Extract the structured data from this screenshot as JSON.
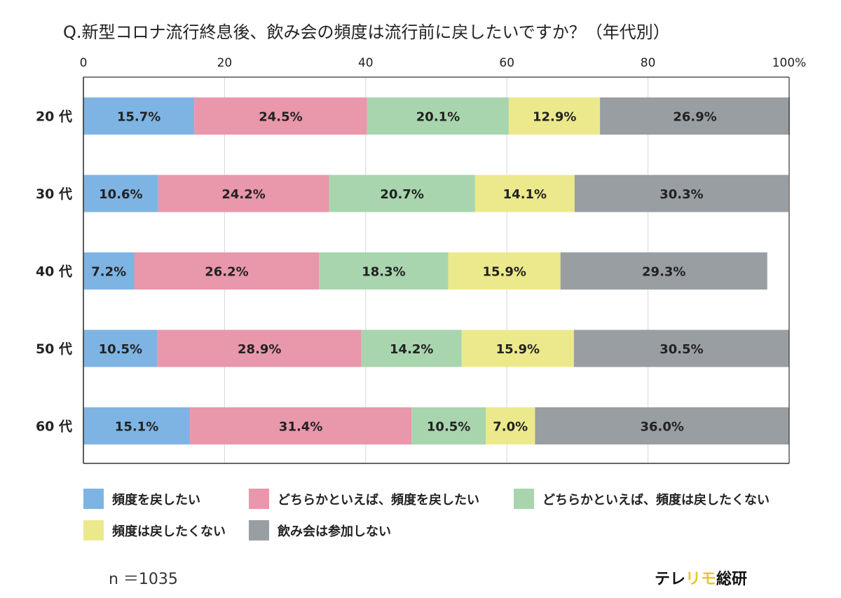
{
  "title": "Q.新型コロナ流行終息後、飲み会の頻度は流行前に戻したいですか？（年代別）",
  "chart_data": {
    "type": "bar",
    "orientation": "horizontal",
    "stacked": true,
    "xlim": [
      0,
      100
    ],
    "x_ticks": [
      "0",
      "20",
      "40",
      "60",
      "80",
      "100%"
    ],
    "x_tick_values": [
      0,
      20,
      40,
      60,
      80,
      100
    ],
    "grid": true,
    "legend_position": "bottom",
    "categories": [
      "20 代",
      "30 代",
      "40 代",
      "50 代",
      "60 代"
    ],
    "series": [
      {
        "name": "頻度を戻したい",
        "color": "#7eb4e3",
        "values": [
          15.7,
          10.6,
          7.2,
          10.5,
          15.1
        ],
        "labels": [
          "15.7%",
          "10.6%",
          "7.2%",
          "10.5%",
          "15.1%"
        ]
      },
      {
        "name": "どちらかといえば、頻度を戻したい",
        "color": "#e997ab",
        "values": [
          24.5,
          24.2,
          26.2,
          28.9,
          31.4
        ],
        "labels": [
          "24.5%",
          "24.2%",
          "26.2%",
          "28.9%",
          "31.4%"
        ]
      },
      {
        "name": "どちらかといえば、頻度は戻したくない",
        "color": "#a8d5ae",
        "values": [
          20.1,
          20.7,
          18.3,
          14.2,
          10.5
        ],
        "labels": [
          "20.1%",
          "20.7%",
          "18.3%",
          "14.2%",
          "10.5%"
        ]
      },
      {
        "name": "頻度は戻したくない",
        "color": "#ece98c",
        "values": [
          12.9,
          14.1,
          15.9,
          15.9,
          7.0
        ],
        "labels": [
          "12.9%",
          "14.1%",
          "15.9%",
          "15.9%",
          "7.0%"
        ]
      },
      {
        "name": "飲み会は参加しない",
        "color": "#999ea3",
        "values": [
          26.9,
          30.3,
          29.3,
          30.5,
          36.0
        ],
        "labels": [
          "26.9%",
          "30.3%",
          "29.3%",
          "30.5%",
          "36.0%"
        ]
      }
    ]
  },
  "sample_size": "n ＝1035",
  "brand": {
    "part1": "テレ",
    "part2": "リモ",
    "part3": "総研"
  },
  "colors": {
    "axis": "#333333",
    "grid": "#d6d6d6",
    "label": "#222222",
    "brand_accent": "#f2c12e"
  }
}
